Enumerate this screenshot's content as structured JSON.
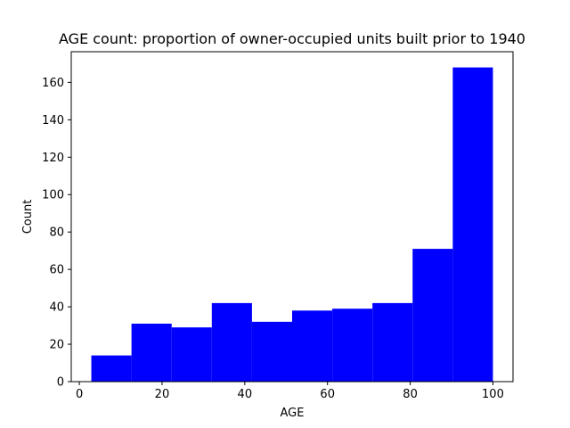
{
  "chart_data": {
    "type": "bar",
    "title": "AGE count: proportion of owner-occupied units built prior to 1940",
    "xlabel": "AGE",
    "ylabel": "Count",
    "bins": [
      {
        "x0": 2.9,
        "x1": 12.61,
        "count": 14
      },
      {
        "x0": 12.61,
        "x1": 22.32,
        "count": 31
      },
      {
        "x0": 22.32,
        "x1": 32.03,
        "count": 29
      },
      {
        "x0": 32.03,
        "x1": 41.74,
        "count": 42
      },
      {
        "x0": 41.74,
        "x1": 51.45,
        "count": 32
      },
      {
        "x0": 51.45,
        "x1": 61.16,
        "count": 38
      },
      {
        "x0": 61.16,
        "x1": 70.87,
        "count": 39
      },
      {
        "x0": 70.87,
        "x1": 80.58,
        "count": 42
      },
      {
        "x0": 80.58,
        "x1": 90.29,
        "count": 71
      },
      {
        "x0": 90.29,
        "x1": 100.0,
        "count": 168
      }
    ],
    "xlim": [
      -1.955,
      104.855
    ],
    "ylim": [
      0,
      176.4
    ],
    "xticks": [
      0,
      20,
      40,
      60,
      80,
      100
    ],
    "yticks": [
      0,
      20,
      40,
      60,
      80,
      100,
      120,
      140,
      160
    ],
    "bar_color": "#0000ff",
    "grid": false,
    "legend": "none"
  }
}
